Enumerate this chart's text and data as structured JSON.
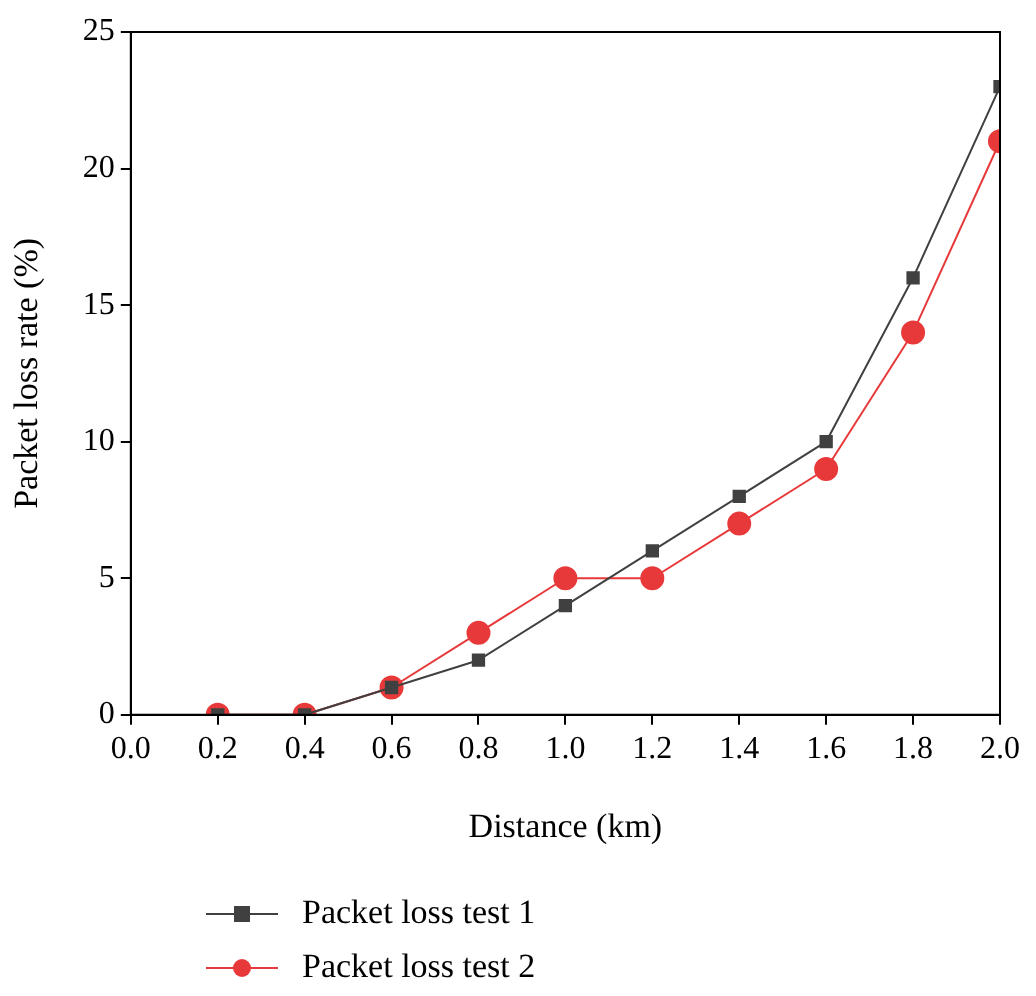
{
  "chart_data": {
    "type": "line",
    "xlabel": "Distance (km)",
    "ylabel": "Packet loss rate (%)",
    "x": [
      0.2,
      0.4,
      0.6,
      0.8,
      1.0,
      1.2,
      1.4,
      1.6,
      1.8,
      2.0
    ],
    "series": [
      {
        "name": "Packet loss test 1",
        "color": "#404040",
        "marker": "square",
        "values": [
          0,
          0,
          1,
          2,
          4,
          6,
          8,
          10,
          16,
          23
        ]
      },
      {
        "name": "Packet loss test 2",
        "color": "#e8393a",
        "marker": "circle",
        "values": [
          0,
          0,
          1,
          3,
          5,
          5,
          7,
          9,
          14,
          21
        ]
      }
    ],
    "xlim": [
      0,
      2.0
    ],
    "xticks": [
      {
        "value": 0,
        "label": "0.0"
      },
      {
        "value": 0.2,
        "label": "0.2"
      },
      {
        "value": 0.4,
        "label": "0.4"
      },
      {
        "value": 0.6,
        "label": "0.6"
      },
      {
        "value": 0.8,
        "label": "0.8"
      },
      {
        "value": 1.0,
        "label": "1.0"
      },
      {
        "value": 1.2,
        "label": "1.2"
      },
      {
        "value": 1.4,
        "label": "1.4"
      },
      {
        "value": 1.6,
        "label": "1.6"
      },
      {
        "value": 1.8,
        "label": "1.8"
      },
      {
        "value": 2.0,
        "label": "2.0"
      }
    ],
    "ylim": [
      0,
      25
    ],
    "yticks": [
      0,
      5,
      10,
      15,
      20,
      25
    ],
    "grid": false,
    "legend": "bottom left",
    "line_style": "solid"
  }
}
